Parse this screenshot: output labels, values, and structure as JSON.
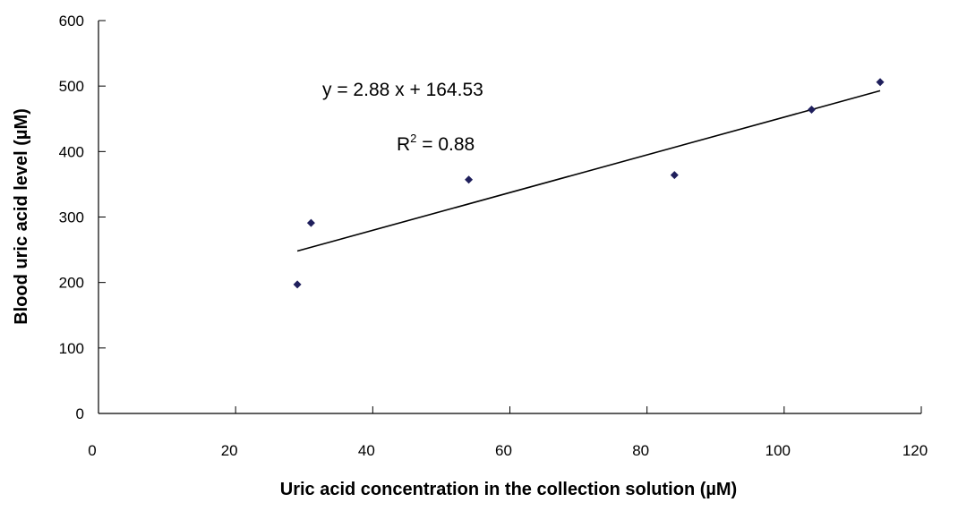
{
  "chart_data": {
    "type": "scatter",
    "xlabel": "Uric acid concentration in the collection solution (µM)",
    "ylabel": "Blood uric acid level (µM)",
    "xlim": [
      0,
      120
    ],
    "ylim": [
      0,
      600
    ],
    "x_ticks": [
      "0",
      "20",
      "40",
      "60",
      "80",
      "100",
      "120"
    ],
    "y_ticks": [
      "0",
      "100",
      "200",
      "300",
      "400",
      "500",
      "600"
    ],
    "grid": false,
    "legend": "none",
    "points": [
      {
        "x": 29,
        "y": 197
      },
      {
        "x": 31,
        "y": 291
      },
      {
        "x": 54,
        "y": 357
      },
      {
        "x": 84,
        "y": 364
      },
      {
        "x": 104,
        "y": 464
      },
      {
        "x": 114,
        "y": 506
      }
    ],
    "trendline": {
      "type": "linear",
      "slope": 2.88,
      "intercept": 164.53,
      "x_range": [
        29,
        114
      ]
    },
    "annotations": {
      "equation": "y = 2.88 x + 164.53",
      "r2_prefix": "R",
      "r2_superscript": "2",
      "r2_value": " = 0.88"
    },
    "colors": {
      "marker": "#1f1f5c",
      "line": "#000000"
    }
  }
}
